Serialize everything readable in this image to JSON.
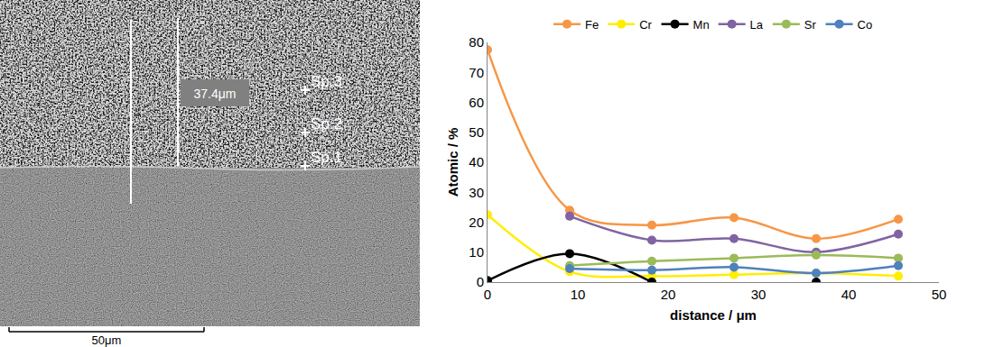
{
  "micrograph": {
    "thickness_label": "37.4μm",
    "points": [
      "Sp.3",
      "Sp.2",
      "Sp.1"
    ],
    "scale_bar": "50μm"
  },
  "chart_data": {
    "type": "line",
    "x_label": "distance / μm",
    "y_label": "Atomic / %",
    "x": [
      0,
      9.1,
      18.2,
      27.3,
      36.4,
      45.5
    ],
    "series": [
      {
        "name": "Fe",
        "color": "#f79646",
        "values": [
          77.5,
          24,
          19,
          21.5,
          14.5,
          21
        ]
      },
      {
        "name": "Cr",
        "color": "#ffee00",
        "values": [
          22.5,
          3.5,
          2,
          2.5,
          3,
          2
        ]
      },
      {
        "name": "Mn",
        "color": "#000000",
        "values": [
          0.5,
          9.5,
          0,
          null,
          0,
          null
        ]
      },
      {
        "name": "La",
        "color": "#8064a2",
        "values": [
          null,
          22,
          14,
          14.5,
          10,
          16
        ]
      },
      {
        "name": "Sr",
        "color": "#9bbb59",
        "values": [
          null,
          5.5,
          7,
          8,
          9,
          8
        ]
      },
      {
        "name": "Co",
        "color": "#4f81bd",
        "values": [
          null,
          4.5,
          4,
          5,
          3,
          5.5
        ]
      }
    ],
    "xlim": [
      0,
      50
    ],
    "xticks": [
      0,
      10,
      20,
      30,
      40,
      50
    ],
    "ylim": [
      0,
      80
    ],
    "yticks": [
      0,
      10,
      20,
      30,
      40,
      50,
      60,
      70,
      80
    ],
    "grid": false,
    "legend": "top",
    "line_style": "smooth",
    "marker": "circle"
  }
}
